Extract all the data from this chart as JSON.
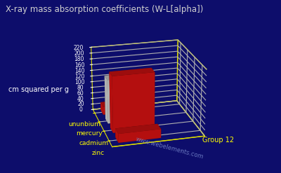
{
  "title": "X-ray mass absorption coefficients (W-L[alpha])",
  "ylabel": "cm squared per g",
  "xlabel": "Group 12",
  "elements": [
    "zinc",
    "cadmium",
    "mercury",
    "ununbium"
  ],
  "values": [
    30,
    190,
    150,
    28
  ],
  "zlim": [
    0,
    220
  ],
  "zticks": [
    0,
    20,
    40,
    60,
    80,
    100,
    120,
    140,
    160,
    180,
    200,
    220
  ],
  "bar_colors": [
    "#cc1111",
    "#cc1111",
    "#c8c8c8",
    "#cc1111"
  ],
  "background_color": "#0d0d6b",
  "grid_color": "#dddd00",
  "title_color": "#d0d0d0",
  "element_label_color": "#ffff00",
  "group_label_color": "#ffff00",
  "tick_color": "#ffffff",
  "ylabel_color": "#ffffff",
  "watermark": "www.webelements.com",
  "watermark_color": "#7788cc",
  "elev": 22,
  "azim": -105
}
